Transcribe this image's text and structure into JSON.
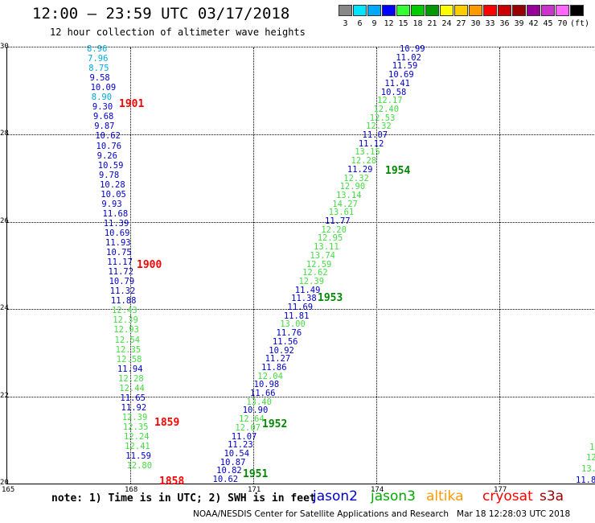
{
  "header": {
    "title": "12:00 – 23:59 UTC 03/17/2018",
    "subtitle": "12 hour collection of altimeter wave heights"
  },
  "color_scale": {
    "colors": [
      "#888888",
      "#00e5ff",
      "#00a8ff",
      "#0000ff",
      "#33ff33",
      "#00cc00",
      "#009900",
      "#ffff00",
      "#ffcc00",
      "#ff9900",
      "#ff0000",
      "#cc0000",
      "#990000",
      "#990099",
      "#cc33cc",
      "#ff66ff",
      "#000000"
    ],
    "labels": [
      "3",
      "6",
      "9",
      "12",
      "15",
      "18",
      "21",
      "24",
      "27",
      "30",
      "33",
      "36",
      "39",
      "42",
      "45",
      "70",
      "(ft)"
    ]
  },
  "axes": {
    "y_ticks": [
      "30",
      "28",
      "26",
      "24",
      "22",
      "20"
    ],
    "x_ticks": [
      "165",
      "168",
      "171",
      "174",
      "177"
    ]
  },
  "tracks": [
    {
      "time": "1901",
      "color": "#ff0000"
    },
    {
      "time": "1900",
      "color": "#ff0000"
    },
    {
      "time": "1859",
      "color": "#ff0000"
    },
    {
      "time": "1858",
      "color": "#ff0000"
    },
    {
      "time": "1954",
      "color": "#008800"
    },
    {
      "time": "1953",
      "color": "#008800"
    },
    {
      "time": "1952",
      "color": "#008800"
    },
    {
      "time": "1951",
      "color": "#008800"
    }
  ],
  "track_a_values": [
    "8.96",
    "7.96",
    "8.75",
    "9.58",
    "10.09",
    "8.90",
    "9.30",
    "9.68",
    "9.87",
    "10.62",
    "10.76",
    "9.26",
    "10.59",
    "9.78",
    "10.28",
    "10.05",
    "9.93",
    "11.68",
    "11.39",
    "10.69",
    "11.93",
    "10.75",
    "11.17",
    "11.72",
    "10.79",
    "11.32",
    "11.88",
    "12.43",
    "12.39",
    "12.93",
    "12.54",
    "12.35",
    "12.58",
    "11.94",
    "12.28",
    "12.44",
    "11.65",
    "11.92",
    "12.39",
    "12.35",
    "12.24",
    "12.41",
    "11.59",
    "12.80"
  ],
  "track_b_values": [
    "10.99",
    "11.02",
    "11.59",
    "10.69",
    "11.41",
    "10.58",
    "12.17",
    "12.40",
    "12.53",
    "12.32",
    "11.07",
    "11.12",
    "13.15",
    "12.28",
    "11.29",
    "12.32",
    "12.90",
    "13.14",
    "14.27",
    "13.61",
    "11.77",
    "12.20",
    "12.95",
    "13.11",
    "13.74",
    "12.59",
    "12.62",
    "12.39",
    "11.49",
    "11.38",
    "11.69",
    "11.81",
    "13.00",
    "11.76",
    "11.56",
    "10.92",
    "11.27",
    "11.86",
    "12.04",
    "10.98",
    "11.66",
    "13.40",
    "10.90",
    "12.64",
    "12.07",
    "11.07",
    "11.23",
    "10.54",
    "10.87",
    "10.82",
    "10.62"
  ],
  "track_c_values": [
    "1",
    "12",
    "13.",
    "11.8"
  ],
  "note": "note: 1) Time is in UTC; 2) SWH is in feet",
  "satellites": [
    {
      "name": "jason2",
      "color": "#0000cc"
    },
    {
      "name": "jason3",
      "color": "#00aa00"
    },
    {
      "name": "altika",
      "color": "#ff9900"
    },
    {
      "name": "cryosat",
      "color": "#ff0000"
    },
    {
      "name": "s3a",
      "color": "#990000"
    }
  ],
  "footer": "NOAA/NESDIS Center for Satellite Applications and Research   Mar 18 12:28:03 UTC 2018"
}
